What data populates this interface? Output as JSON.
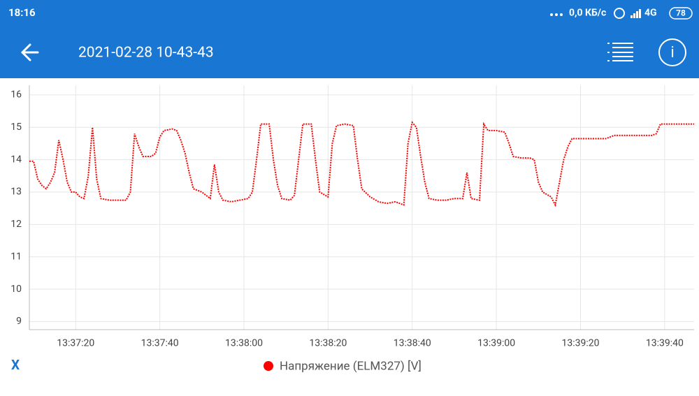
{
  "status_bar": {
    "time": "18:16",
    "network_speed": "0,0 КБ/с",
    "network": "4G",
    "battery": "78"
  },
  "header": {
    "title": "2021-02-28 10-43-43"
  },
  "footer": {
    "axis_button": "X"
  },
  "chart_data": {
    "type": "line",
    "x": [
      "13:37:09",
      "13:37:10",
      "13:37:11",
      "13:37:12",
      "13:37:13",
      "13:37:14",
      "13:37:15",
      "13:37:16",
      "13:37:17",
      "13:37:18",
      "13:37:19",
      "13:37:20",
      "13:37:21",
      "13:37:22",
      "13:37:23",
      "13:37:24",
      "13:37:25",
      "13:37:26",
      "13:37:28",
      "13:37:30",
      "13:37:32",
      "13:37:33",
      "13:37:34",
      "13:37:35",
      "13:37:36",
      "13:37:38",
      "13:37:39",
      "13:37:40",
      "13:37:41",
      "13:37:43",
      "13:37:44",
      "13:37:45",
      "13:37:46",
      "13:37:47",
      "13:37:48",
      "13:37:50",
      "13:37:52",
      "13:37:53",
      "13:37:54",
      "13:37:55",
      "13:37:57",
      "13:37:59",
      "13:38:01",
      "13:38:02",
      "13:38:03",
      "13:38:04",
      "13:38:06",
      "13:38:07",
      "13:38:08",
      "13:38:09",
      "13:38:11",
      "13:38:12",
      "13:38:13",
      "13:38:14",
      "13:38:16",
      "13:38:17",
      "13:38:18",
      "13:38:20",
      "13:38:21",
      "13:38:22",
      "13:38:24",
      "13:38:26",
      "13:38:27",
      "13:38:28",
      "13:38:30",
      "13:38:32",
      "13:38:34",
      "13:38:36",
      "13:38:38",
      "13:38:39",
      "13:38:40",
      "13:38:41",
      "13:38:42",
      "13:38:43",
      "13:38:44",
      "13:38:46",
      "13:38:48",
      "13:38:50",
      "13:38:52",
      "13:38:53",
      "13:38:54",
      "13:38:56",
      "13:38:57",
      "13:38:58",
      "13:39:00",
      "13:39:02",
      "13:39:03",
      "13:39:04",
      "13:39:06",
      "13:39:08",
      "13:39:09",
      "13:39:10",
      "13:39:11",
      "13:39:13",
      "13:39:14",
      "13:39:15",
      "13:39:16",
      "13:39:17",
      "13:39:18",
      "13:39:20",
      "13:39:23",
      "13:39:26",
      "13:39:28",
      "13:39:31",
      "13:39:34",
      "13:39:37",
      "13:39:38",
      "13:39:39",
      "13:39:42",
      "13:39:45",
      "13:39:47"
    ],
    "series": [
      {
        "name": "Напряжение (ELM327) [V]",
        "color": "#ff0000",
        "values": [
          13.95,
          13.95,
          13.4,
          13.2,
          13.1,
          13.3,
          13.6,
          14.6,
          14.0,
          13.3,
          13.0,
          13.0,
          12.85,
          12.8,
          13.5,
          15.0,
          13.4,
          12.8,
          12.75,
          12.75,
          12.75,
          13.0,
          14.8,
          14.4,
          14.1,
          14.1,
          14.2,
          14.7,
          14.9,
          14.95,
          14.9,
          14.6,
          14.2,
          13.6,
          13.1,
          13.0,
          12.8,
          13.85,
          13.0,
          12.75,
          12.7,
          12.75,
          12.8,
          13.0,
          14.0,
          15.1,
          15.1,
          14.0,
          13.2,
          12.8,
          12.75,
          12.9,
          14.0,
          15.1,
          15.1,
          14.0,
          13.0,
          12.85,
          14.5,
          15.05,
          15.1,
          15.05,
          14.0,
          13.1,
          12.85,
          12.7,
          12.65,
          12.7,
          12.6,
          14.5,
          15.15,
          15.0,
          14.1,
          13.3,
          12.8,
          12.75,
          12.75,
          12.8,
          12.8,
          13.6,
          12.8,
          12.75,
          15.1,
          14.9,
          14.9,
          14.85,
          14.5,
          14.1,
          14.05,
          14.05,
          14.0,
          13.3,
          13.0,
          12.85,
          12.6,
          13.3,
          14.0,
          14.4,
          14.65,
          14.65,
          14.65,
          14.65,
          14.75,
          14.75,
          14.75,
          14.75,
          14.8,
          15.1,
          15.1,
          15.1,
          15.1
        ]
      }
    ],
    "xlim": [
      "13:37:09",
      "13:39:47"
    ],
    "xticks": [
      "13:37:20",
      "13:37:40",
      "13:38:00",
      "13:38:20",
      "13:38:40",
      "13:39:00",
      "13:39:20",
      "13:39:40"
    ],
    "ylim": [
      8.75,
      16.3
    ],
    "yticks": [
      9,
      10,
      11,
      12,
      13,
      14,
      15,
      16
    ],
    "grid": true
  }
}
